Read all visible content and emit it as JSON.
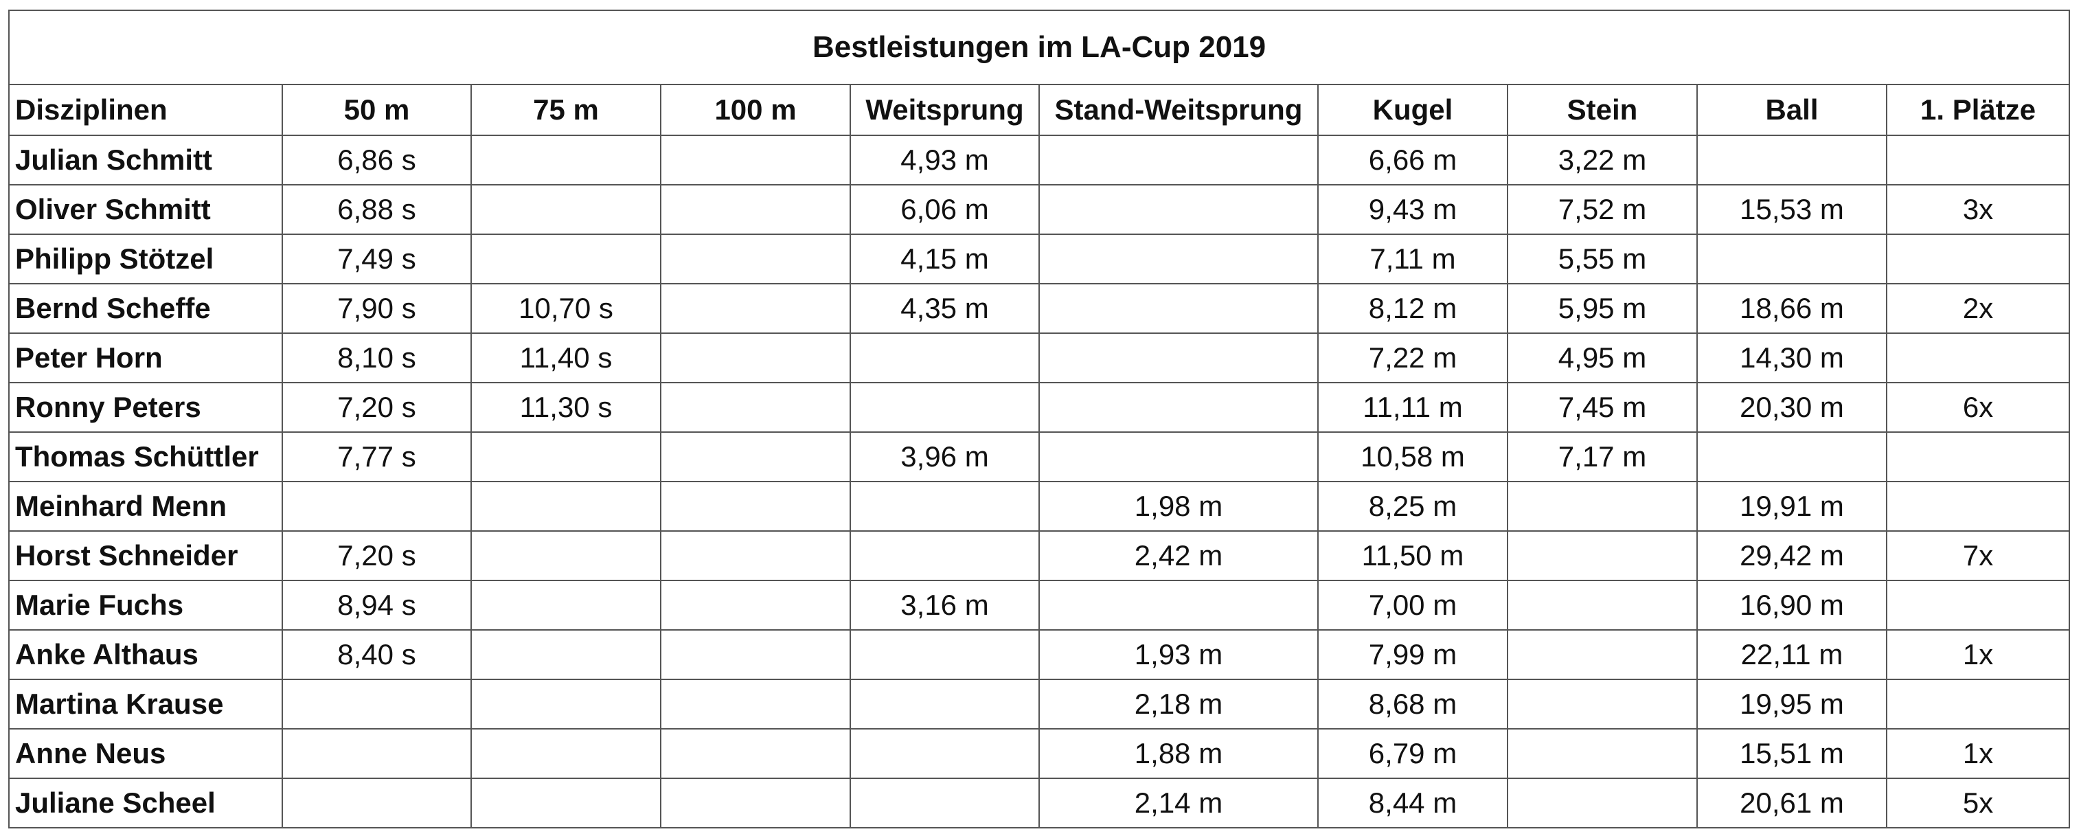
{
  "title": "Bestleistungen im LA-Cup 2019",
  "columns": [
    "Disziplinen",
    "50 m",
    "75 m",
    "100 m",
    "Weitsprung",
    "Stand-Weitsprung",
    "Kugel",
    "Stein",
    "Ball",
    "1. Plätze"
  ],
  "rows": [
    [
      "Julian Schmitt",
      "6,86 s",
      "",
      "",
      "4,93 m",
      "",
      "6,66 m",
      "3,22 m",
      "",
      ""
    ],
    [
      "Oliver Schmitt",
      "6,88 s",
      "",
      "",
      "6,06 m",
      "",
      "9,43 m",
      "7,52 m",
      "15,53 m",
      "3x"
    ],
    [
      "Philipp Stötzel",
      "7,49 s",
      "",
      "",
      "4,15 m",
      "",
      "7,11 m",
      "5,55 m",
      "",
      ""
    ],
    [
      "Bernd Scheffe",
      "7,90 s",
      "10,70 s",
      "",
      "4,35 m",
      "",
      "8,12 m",
      "5,95 m",
      "18,66 m",
      "2x"
    ],
    [
      "Peter Horn",
      "8,10 s",
      "11,40 s",
      "",
      "",
      "",
      "7,22 m",
      "4,95 m",
      "14,30 m",
      ""
    ],
    [
      "Ronny Peters",
      "7,20 s",
      "11,30 s",
      "",
      "",
      "",
      "11,11 m",
      "7,45 m",
      "20,30 m",
      "6x"
    ],
    [
      "Thomas Schüttler",
      "7,77 s",
      "",
      "",
      "3,96 m",
      "",
      "10,58 m",
      "7,17 m",
      "",
      ""
    ],
    [
      "Meinhard Menn",
      "",
      "",
      "",
      "",
      "1,98 m",
      "8,25 m",
      "",
      "19,91 m",
      ""
    ],
    [
      "Horst Schneider",
      "7,20 s",
      "",
      "",
      "",
      "2,42 m",
      "11,50 m",
      "",
      "29,42 m",
      "7x"
    ],
    [
      "Marie Fuchs",
      "8,94 s",
      "",
      "",
      "3,16 m",
      "",
      "7,00 m",
      "",
      "16,90 m",
      ""
    ],
    [
      "Anke Althaus",
      "8,40 s",
      "",
      "",
      "",
      "1,93 m",
      "7,99 m",
      "",
      "22,11 m",
      "1x"
    ],
    [
      "Martina Krause",
      "",
      "",
      "",
      "",
      "2,18 m",
      "8,68 m",
      "",
      "19,95 m",
      ""
    ],
    [
      "Anne Neus",
      "",
      "",
      "",
      "",
      "1,88 m",
      "6,79 m",
      "",
      "15,51 m",
      "1x"
    ],
    [
      "Juliane Scheel",
      "",
      "",
      "",
      "",
      "2,14 m",
      "8,44 m",
      "",
      "20,61 m",
      "5x"
    ]
  ]
}
